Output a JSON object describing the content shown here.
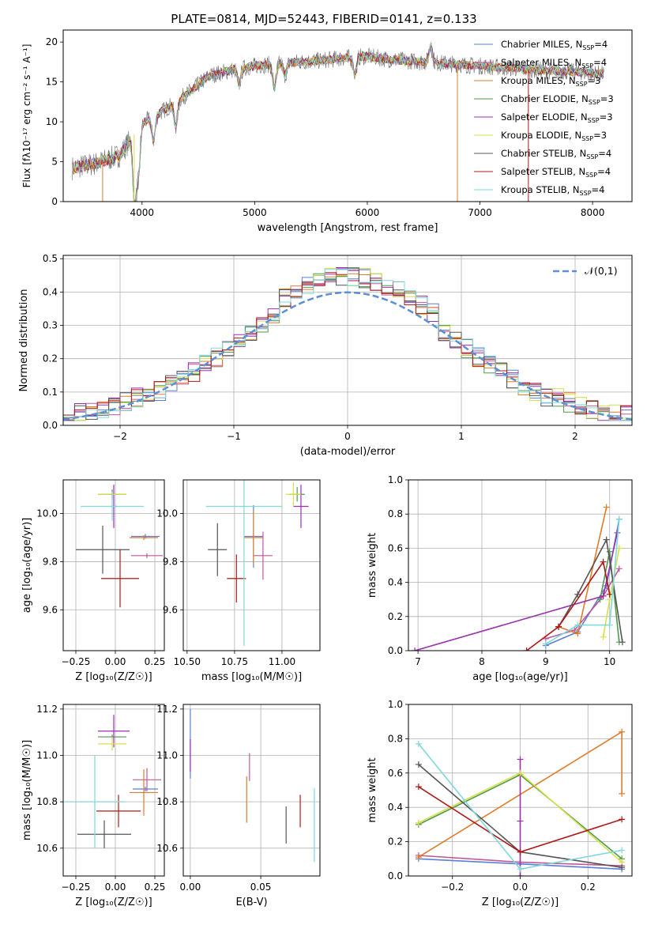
{
  "title": "PLATE=0814, MJD=52443, FIBERID=0141, z=0.133",
  "series": [
    {
      "name": "Chabrier MILES",
      "ssp": "4",
      "color": "#5b7fd6"
    },
    {
      "name": "Salpeter MILES",
      "ssp": "4",
      "color": "#c0589a"
    },
    {
      "name": "Kroupa MILES",
      "ssp": "3",
      "color": "#e07b2a"
    },
    {
      "name": "Chabrier ELODIE",
      "ssp": "3",
      "color": "#4e9a4e"
    },
    {
      "name": "Salpeter ELODIE",
      "ssp": "3",
      "color": "#9c2fb0"
    },
    {
      "name": "Kroupa ELODIE",
      "ssp": "3",
      "color": "#d8e04a"
    },
    {
      "name": "Chabrier STELIB",
      "ssp": "4",
      "color": "#555555"
    },
    {
      "name": "Salpeter STELIB",
      "ssp": "4",
      "color": "#b01818"
    },
    {
      "name": "Kroupa STELIB",
      "ssp": "4",
      "color": "#7fd8dd"
    }
  ],
  "chart_data": [
    {
      "id": "spectrum",
      "type": "line",
      "xlabel": "wavelength [Angstrom, rest frame]",
      "ylabel": "Flux [fλ10⁻¹⁷ erg cm⁻² s⁻¹ A⁻¹]",
      "xlim": [
        3300,
        8350
      ],
      "ylim": [
        0,
        21.5
      ],
      "xticks": [
        4000,
        5000,
        6000,
        7000,
        8000
      ],
      "yticks": [
        0,
        5,
        10,
        15,
        20
      ],
      "continuum_x": [
        3380,
        3600,
        3800,
        4000,
        4200,
        4400,
        4600,
        4800,
        5000,
        5200,
        5400,
        5600,
        5800,
        6000,
        6200,
        6400,
        6600,
        6800,
        7000,
        7200,
        7400,
        7600,
        7800,
        8000,
        8100
      ],
      "continuum_y": [
        4.2,
        4.8,
        5.8,
        9.8,
        11.5,
        13.5,
        15.8,
        16.5,
        17.0,
        17.3,
        17.5,
        17.7,
        18.0,
        18.2,
        17.8,
        17.6,
        17.4,
        17.2,
        17.0,
        16.8,
        16.6,
        16.4,
        16.3,
        16.1,
        16.0
      ],
      "legend": "upper right"
    },
    {
      "id": "residuals",
      "type": "histogram",
      "xlabel": "(data-model)/error",
      "ylabel": "Normed distribution",
      "xlim": [
        -2.5,
        2.5
      ],
      "ylim": [
        0,
        0.51
      ],
      "xticks": [
        -2,
        -1,
        0,
        1,
        2
      ],
      "yticks": [
        0.0,
        0.1,
        0.2,
        0.3,
        0.4,
        0.5
      ],
      "bin_width": 0.1,
      "reference": {
        "label": "𝒩(0,1)",
        "color": "#5b8fd6"
      },
      "legend": "upper right"
    },
    {
      "id": "age_vs_Z",
      "type": "scatter",
      "xlabel": "Z [log₁₀(Z/Z☉)]",
      "ylabel": "age  [log₁₀(age/yr)]",
      "xlim": [
        -0.33,
        0.31
      ],
      "ylim": [
        9.43,
        10.14
      ],
      "xticks": [
        -0.25,
        0.0,
        0.25
      ],
      "yticks": [
        9.6,
        9.8,
        10.0
      ],
      "points": [
        {
          "x": 0.19,
          "y": 9.905,
          "xerr": 0.09,
          "yerr": 0.01
        },
        {
          "x": 0.2,
          "y": 9.825,
          "xerr": 0.1,
          "yerr": 0.01
        },
        {
          "x": 0.18,
          "y": 9.9,
          "xerr": 0.09,
          "yerr": 0.01
        },
        {
          "x": -0.02,
          "y": 10.08,
          "xerr": 0.09,
          "yerr": 0.02
        },
        {
          "x": -0.01,
          "y": 10.03,
          "xerr": 0.02,
          "yerr": 0.09
        },
        {
          "x": -0.02,
          "y": 10.08,
          "xerr": 0.09,
          "yerr": 0.01
        },
        {
          "x": -0.08,
          "y": 9.85,
          "xerr": 0.17,
          "yerr": 0.1
        },
        {
          "x": 0.03,
          "y": 9.73,
          "xerr": 0.12,
          "yerr": 0.12
        },
        {
          "x": -0.02,
          "y": 10.03,
          "xerr": 0.2,
          "yerr": 0.06
        }
      ]
    },
    {
      "id": "age_vs_mass",
      "type": "scatter",
      "xlabel": "mass [log₁₀(M/M☉)]",
      "ylabel": "",
      "xlim": [
        10.48,
        11.2
      ],
      "ylim": [
        9.43,
        10.14
      ],
      "xticks": [
        10.5,
        10.75,
        11.0
      ],
      "yticks": [
        9.6,
        9.8,
        10.0
      ],
      "points": [
        {
          "x": 10.85,
          "y": 9.905,
          "xerr": 0.05,
          "yerr": 0.13
        },
        {
          "x": 10.9,
          "y": 9.825,
          "xerr": 0.05,
          "yerr": 0.1
        },
        {
          "x": 10.85,
          "y": 9.9,
          "xerr": 0.05,
          "yerr": 0.11
        },
        {
          "x": 11.08,
          "y": 10.08,
          "xerr": 0.04,
          "yerr": 0.03
        },
        {
          "x": 11.1,
          "y": 10.03,
          "xerr": 0.04,
          "yerr": 0.09
        },
        {
          "x": 11.06,
          "y": 10.08,
          "xerr": 0.04,
          "yerr": 0.05
        },
        {
          "x": 10.66,
          "y": 9.85,
          "xerr": 0.05,
          "yerr": 0.11
        },
        {
          "x": 10.76,
          "y": 9.73,
          "xerr": 0.05,
          "yerr": 0.1
        },
        {
          "x": 10.8,
          "y": 10.03,
          "xerr": 0.2,
          "yerr": 0.58
        }
      ]
    },
    {
      "id": "weight_vs_age",
      "type": "line",
      "xlabel": "age  [log₁₀(age/yr)]",
      "ylabel": "mass weight",
      "xlim": [
        6.85,
        10.35
      ],
      "ylim": [
        0,
        1.0
      ],
      "xticks": [
        7,
        8,
        9,
        10
      ],
      "yticks": [
        0.0,
        0.2,
        0.4,
        0.6,
        0.8,
        1.0
      ],
      "lines": [
        {
          "x": [
            9.0,
            9.5,
            9.95,
            10.15
          ],
          "y": [
            0.03,
            0.11,
            0.38,
            0.77
          ]
        },
        {
          "x": [
            9.0,
            9.45,
            9.9,
            10.15
          ],
          "y": [
            0.07,
            0.12,
            0.32,
            0.48
          ]
        },
        {
          "x": [
            9.2,
            9.5,
            9.95
          ],
          "y": [
            0.14,
            0.1,
            0.84
          ]
        },
        {
          "x": [
            9.85,
            10.0,
            10.15
          ],
          "y": [
            0.3,
            0.58,
            0.05
          ]
        },
        {
          "x": [
            6.95,
            9.9,
            10.12
          ],
          "y": [
            0.0,
            0.32,
            0.69
          ]
        },
        {
          "x": [
            9.9,
            10.0,
            10.15
          ],
          "y": [
            0.08,
            0.3,
            0.6
          ]
        },
        {
          "x": [
            9.2,
            9.5,
            9.95,
            10.2
          ],
          "y": [
            0.14,
            0.33,
            0.65,
            0.05
          ]
        },
        {
          "x": [
            8.7,
            9.2,
            9.9,
            10.0
          ],
          "y": [
            0.0,
            0.14,
            0.52,
            0.33
          ]
        },
        {
          "x": [
            9.0,
            9.5,
            10.0,
            10.15
          ],
          "y": [
            0.04,
            0.15,
            0.15,
            0.77
          ]
        }
      ]
    },
    {
      "id": "mass_vs_Z",
      "type": "scatter",
      "xlabel": "Z [log₁₀(Z/Z☉)]",
      "ylabel": "mass [log₁₀(M/M☉)]",
      "xlim": [
        -0.33,
        0.31
      ],
      "ylim": [
        10.48,
        11.22
      ],
      "xticks": [
        -0.25,
        0.0,
        0.25
      ],
      "yticks": [
        10.6,
        10.8,
        11.0,
        11.2
      ],
      "points": [
        {
          "x": 0.19,
          "y": 10.855,
          "xerr": 0.08,
          "yerr": 0.01
        },
        {
          "x": 0.2,
          "y": 10.895,
          "xerr": 0.09,
          "yerr": 0.05
        },
        {
          "x": 0.18,
          "y": 10.84,
          "xerr": 0.09,
          "yerr": 0.1
        },
        {
          "x": -0.02,
          "y": 11.08,
          "xerr": 0.09,
          "yerr": 0.01
        },
        {
          "x": -0.01,
          "y": 11.105,
          "xerr": 0.1,
          "yerr": 0.07
        },
        {
          "x": -0.02,
          "y": 11.05,
          "xerr": 0.09,
          "yerr": 0.03
        },
        {
          "x": -0.07,
          "y": 10.66,
          "xerr": 0.17,
          "yerr": 0.06
        },
        {
          "x": 0.02,
          "y": 10.76,
          "xerr": 0.14,
          "yerr": 0.07
        },
        {
          "x": -0.13,
          "y": 10.8,
          "xerr": 0.19,
          "yerr": 0.2
        }
      ]
    },
    {
      "id": "mass_vs_ebv",
      "type": "errorbar",
      "xlabel": "E(B-V)",
      "ylabel": "",
      "xlim": [
        -0.005,
        0.092
      ],
      "ylim": [
        10.48,
        11.22
      ],
      "xticks": [
        0.0,
        0.05
      ],
      "yticks": [
        10.6,
        10.8,
        11.0,
        11.2
      ],
      "points": [
        {
          "x": 0.0,
          "y": 11.05,
          "yerr": 0.15
        },
        {
          "x": 0.0,
          "y": 11.0,
          "yerr": 0.07
        },
        {
          "x": 0.04,
          "y": 10.81,
          "yerr": 0.1
        },
        {
          "x": 0.042,
          "y": 10.95,
          "yerr": 0.06
        },
        {
          "x": 0.068,
          "y": 10.7,
          "yerr": 0.08
        },
        {
          "x": 0.078,
          "y": 10.76,
          "yerr": 0.07
        },
        {
          "x": 0.088,
          "y": 10.7,
          "yerr": 0.16
        }
      ],
      "point_series": [
        0,
        4,
        2,
        1,
        6,
        7,
        8
      ]
    },
    {
      "id": "weight_vs_Z",
      "type": "line",
      "xlabel": "Z [log₁₀(Z/Z☉)]",
      "ylabel": "mass weight",
      "xlim": [
        -0.33,
        0.33
      ],
      "ylim": [
        0,
        1.0
      ],
      "xticks": [
        -0.2,
        0.0,
        0.2
      ],
      "yticks": [
        0.0,
        0.2,
        0.4,
        0.6,
        0.8,
        1.0
      ],
      "lines": [
        {
          "x": [
            -0.3,
            0.0,
            0.3
          ],
          "y": [
            0.1,
            0.07,
            0.04
          ]
        },
        {
          "x": [
            -0.3,
            0.0,
            0.3
          ],
          "y": [
            0.12,
            0.08,
            0.06
          ]
        },
        {
          "x": [
            -0.3,
            0.3,
            0.3
          ],
          "y": [
            0.11,
            0.84,
            0.48
          ]
        },
        {
          "x": [
            -0.3,
            0.0,
            0.3
          ],
          "y": [
            0.3,
            0.59,
            0.1
          ]
        },
        {
          "x": [
            0.0,
            0.0,
            0.0
          ],
          "y": [
            0.68,
            0.32,
            0.0
          ]
        },
        {
          "x": [
            -0.3,
            0.0,
            0.3
          ],
          "y": [
            0.31,
            0.6,
            0.08
          ]
        },
        {
          "x": [
            -0.3,
            0.0,
            0.3
          ],
          "y": [
            0.65,
            0.14,
            0.05
          ]
        },
        {
          "x": [
            -0.3,
            0.0,
            0.3
          ],
          "y": [
            0.52,
            0.14,
            0.33
          ]
        },
        {
          "x": [
            -0.3,
            0.0,
            0.3
          ],
          "y": [
            0.77,
            0.04,
            0.15
          ]
        }
      ]
    }
  ]
}
